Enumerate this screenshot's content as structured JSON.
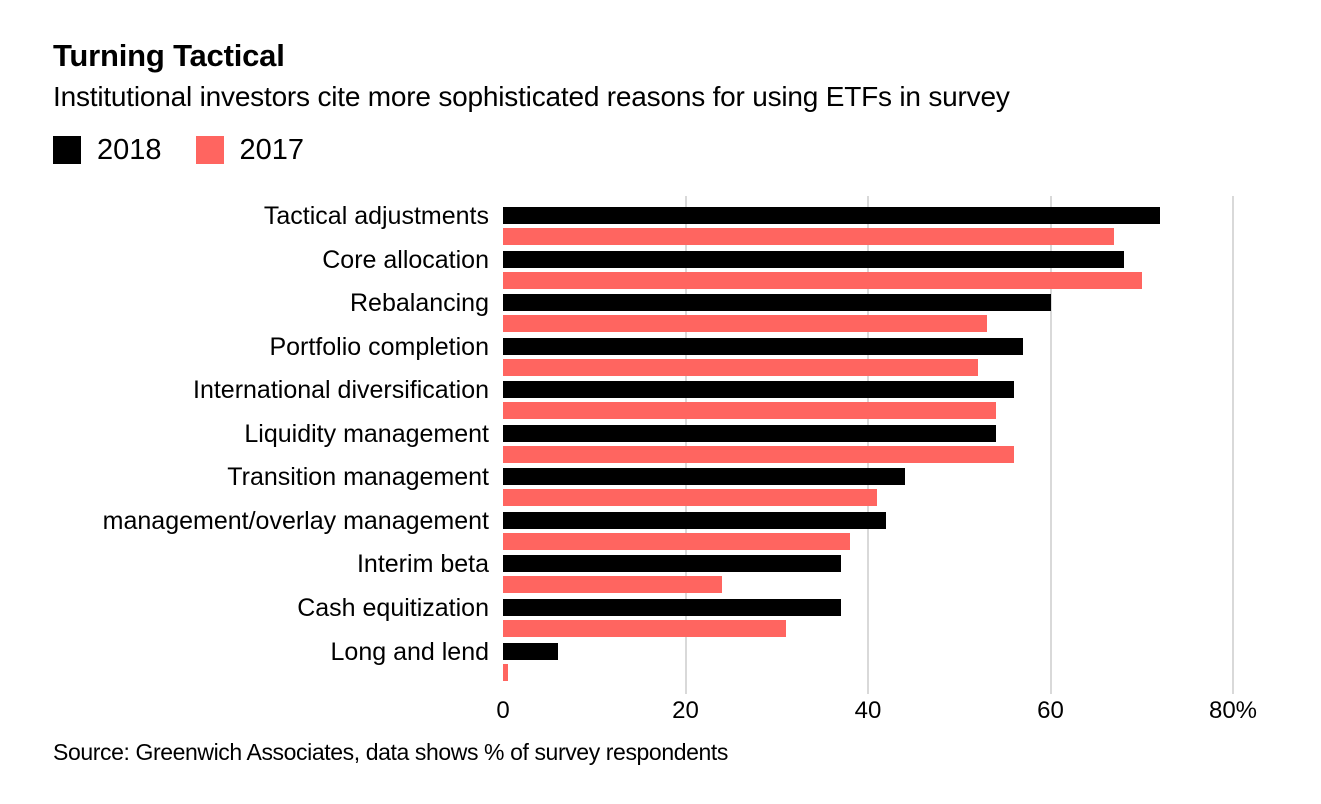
{
  "header": {
    "title": "Turning Tactical",
    "subtitle": "Institutional investors cite more sophisticated reasons for using ETFs in survey"
  },
  "legend": [
    {
      "label": "2018",
      "color": "#000000"
    },
    {
      "label": "2017",
      "color": "#ff6560"
    }
  ],
  "source": "Source: Greenwich Associates, data shows % of survey respondents",
  "colors": {
    "series_2018": "#000000",
    "series_2017": "#ff6560",
    "gridline": "#d9d9d9",
    "background": "#ffffff",
    "text": "#000000"
  },
  "chart_data": {
    "type": "bar",
    "orientation": "horizontal",
    "title": "Turning Tactical",
    "subtitle": "Institutional investors cite more sophisticated reasons for using ETFs in survey",
    "categories": [
      "Tactical adjustments",
      "Core allocation",
      "Rebalancing",
      "Portfolio completion",
      "International diversification",
      "Liquidity management",
      "Transition management",
      "management/overlay management",
      "Interim beta",
      "Cash equitization",
      "Long and lend"
    ],
    "series": [
      {
        "name": "2018",
        "color": "#000000",
        "values": [
          72,
          68,
          60,
          57,
          56,
          54,
          44,
          42,
          37,
          37,
          6
        ]
      },
      {
        "name": "2017",
        "color": "#ff6560",
        "values": [
          67,
          70,
          53,
          52,
          54,
          56,
          41,
          38,
          24,
          31,
          0.5
        ]
      }
    ],
    "xlabel": "% of survey respondents",
    "ylabel": "",
    "xlim": [
      0,
      87
    ],
    "x_ticks": [
      {
        "value": 0,
        "label": "0"
      },
      {
        "value": 20,
        "label": "20"
      },
      {
        "value": 40,
        "label": "40"
      },
      {
        "value": 60,
        "label": "60"
      },
      {
        "value": 80,
        "label": "80%"
      }
    ],
    "grid": "vertical",
    "legend_position": "top-left"
  }
}
